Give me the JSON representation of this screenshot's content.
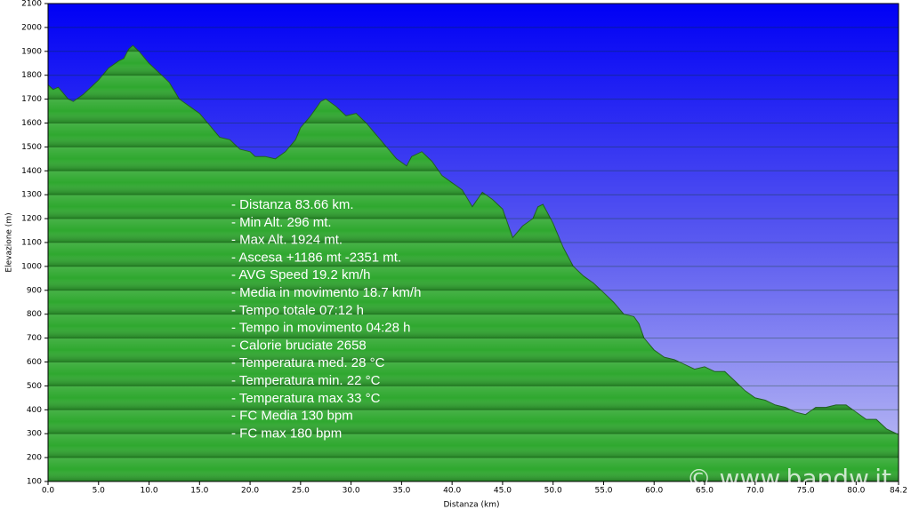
{
  "chart_data": {
    "type": "area",
    "xlabel": "Distanza (km)",
    "ylabel": "Elevazione (m)",
    "x": [
      0,
      0.5,
      1,
      2,
      2.5,
      3.5,
      5,
      6,
      7,
      7.5,
      8,
      8.4,
      9,
      10,
      11,
      12,
      13,
      14,
      15,
      16,
      17,
      18,
      19,
      20,
      20.5,
      21.5,
      22.5,
      23.5,
      24.5,
      25,
      26,
      27,
      27.5,
      28.5,
      29.5,
      30.5,
      31.5,
      32.5,
      33.5,
      34.5,
      35.5,
      36,
      37,
      38,
      39,
      40,
      41,
      42,
      43,
      44,
      45,
      46,
      47,
      48,
      48.5,
      49,
      50,
      51,
      52,
      53,
      54,
      55,
      56,
      57,
      58,
      58.5,
      59,
      60,
      61,
      62,
      63,
      64,
      65,
      66,
      67,
      68,
      69,
      70,
      71,
      72,
      73,
      74,
      75,
      76,
      77,
      78,
      79,
      80,
      81,
      82,
      83,
      84,
      84.2
    ],
    "values": [
      1760,
      1740,
      1750,
      1700,
      1690,
      1720,
      1780,
      1830,
      1860,
      1870,
      1910,
      1924,
      1900,
      1850,
      1810,
      1770,
      1700,
      1670,
      1640,
      1590,
      1540,
      1530,
      1490,
      1480,
      1460,
      1460,
      1450,
      1480,
      1530,
      1580,
      1630,
      1690,
      1700,
      1670,
      1630,
      1640,
      1600,
      1550,
      1500,
      1450,
      1420,
      1460,
      1480,
      1440,
      1380,
      1350,
      1320,
      1250,
      1310,
      1280,
      1240,
      1120,
      1170,
      1200,
      1250,
      1260,
      1180,
      1080,
      1000,
      960,
      930,
      890,
      850,
      800,
      790,
      760,
      700,
      650,
      620,
      610,
      590,
      570,
      580,
      560,
      560,
      520,
      480,
      450,
      440,
      420,
      410,
      390,
      380,
      410,
      410,
      420,
      420,
      390,
      360,
      360,
      320,
      300,
      296
    ],
    "color": "#2fa82f",
    "xlim": [
      0,
      84.2
    ],
    "xticks": [
      {
        "value": 0,
        "label": "0.0"
      },
      {
        "value": 5,
        "label": "5.0"
      },
      {
        "value": 10,
        "label": "10.0"
      },
      {
        "value": 15,
        "label": "15.0"
      },
      {
        "value": 20,
        "label": "20.0"
      },
      {
        "value": 25,
        "label": "25.0"
      },
      {
        "value": 30,
        "label": "30.0"
      },
      {
        "value": 35,
        "label": "35.0"
      },
      {
        "value": 40,
        "label": "40.0"
      },
      {
        "value": 45,
        "label": "45.0"
      },
      {
        "value": 50,
        "label": "50.0"
      },
      {
        "value": 55,
        "label": "55.0"
      },
      {
        "value": 60,
        "label": "60.0"
      },
      {
        "value": 65,
        "label": "65.0"
      },
      {
        "value": 70,
        "label": "70.0"
      },
      {
        "value": 75,
        "label": "75.0"
      },
      {
        "value": 80,
        "label": "80.0"
      },
      84.2
    ],
    "ylim": [
      100,
      2100
    ],
    "yticks": [
      100,
      200,
      300,
      400,
      500,
      600,
      700,
      800,
      900,
      1000,
      1100,
      1200,
      1300,
      1400,
      1500,
      1600,
      1700,
      1800,
      1900,
      2000,
      2100
    ],
    "grid": true,
    "annotations": [
      "- Distanza 83.66 km.",
      "- Min Alt. 296 mt.",
      "- Max Alt. 1924 mt.",
      "- Ascesa +1186 mt -2351 mt.",
      "- AVG Speed 19.2 km/h",
      "- Media in movimento 18.7 km/h",
      "- Tempo totale 07:12 h",
      "- Tempo in movimento 04:28 h",
      "- Calorie bruciate 2658",
      "- Temperatura med. 28 °C",
      "- Temperatura min. 22 °C",
      "- Temperatura max 33 °C",
      "- FC Media 130 bpm",
      "- FC max 180 bpm"
    ],
    "watermark": "© www.bandw.it"
  }
}
